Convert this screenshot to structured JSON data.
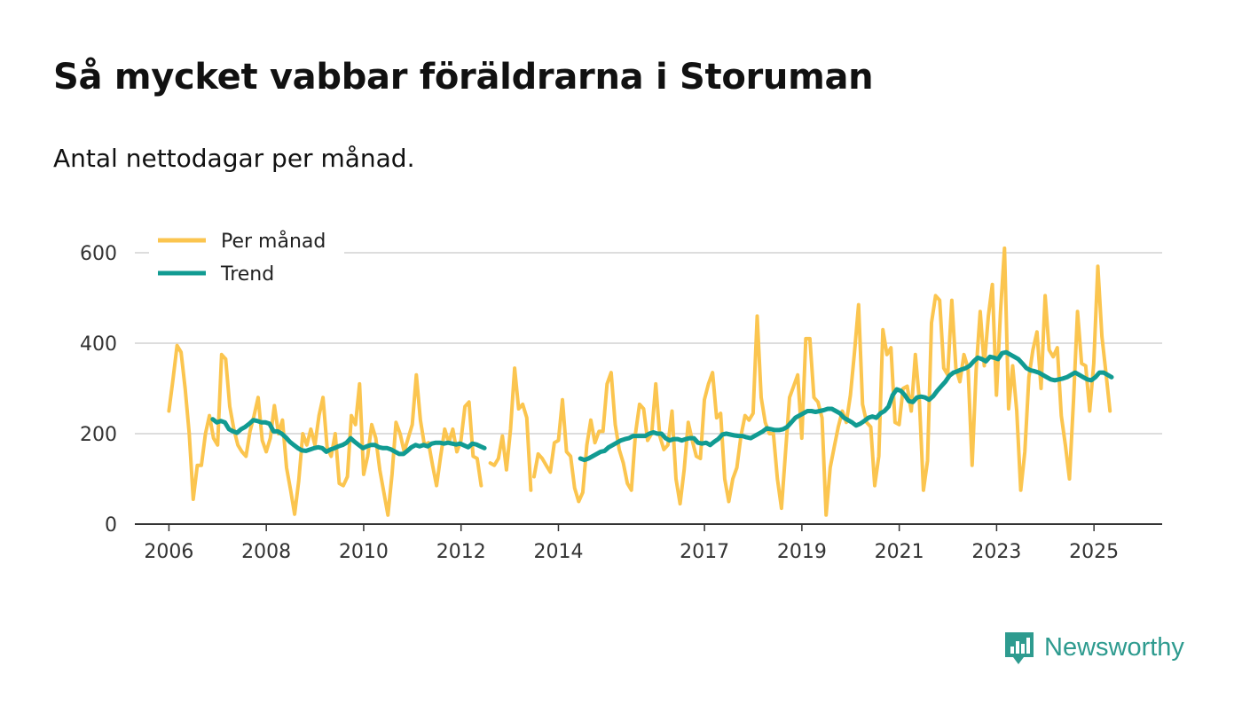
{
  "title": "Så mycket vabbar föräldrarna i Storuman",
  "subtitle": "Antal nettodagar per månad.",
  "brand": {
    "name": "Newsworthy",
    "icon": "newsworthy-logo-icon",
    "color": "#2e9b8f"
  },
  "colors": {
    "monthly": "#fbc54f",
    "trend": "#119b92",
    "grid": "#dddddd",
    "axis": "#333333"
  },
  "chart_data": {
    "type": "line",
    "title": "Så mycket vabbar föräldrarna i Storuman",
    "subtitle": "Antal nettodagar per månad.",
    "xlabel": "",
    "ylabel": "",
    "xlim": [
      2005.3,
      2026.4
    ],
    "ylim": [
      0,
      600
    ],
    "yticks": [
      0,
      200,
      400,
      600
    ],
    "xticks": [
      2006,
      2008,
      2010,
      2012,
      2014,
      2017,
      2019,
      2021,
      2023,
      2025
    ],
    "grid": true,
    "legend_position": "top-left",
    "series": [
      {
        "name": "Per månad",
        "color": "#fbc54f",
        "segments": [
          {
            "start": 2006.0,
            "step": 0.0833,
            "values": [
              250,
              320,
              395,
              380,
              300,
              200,
              55,
              130,
              130,
              200,
              240,
              190,
              175,
              375,
              365,
              260,
              210,
              175,
              160,
              150,
              205,
              240,
              280,
              185,
              160,
              190,
              262,
              200,
              230,
              125,
              75,
              22,
              95,
              200,
              175,
              210,
              175,
              240,
              280,
              170,
              150,
              200,
              90,
              85,
              105,
              240,
              220,
              310,
              110,
              150,
              220,
              190,
              120,
              70,
              20,
              110,
              225,
              200,
              160,
              190,
              220,
              330,
              230,
              175,
              180,
              130,
              85,
              150,
              210,
              180,
              210,
              160,
              185,
              260,
              270,
              150,
              145,
              85
            ]
          },
          {
            "start": 2012.6,
            "step": 0.0833,
            "values": [
              135,
              130,
              145,
              195,
              120,
              210,
              345,
              255,
              265,
              235,
              75
            ]
          },
          {
            "start": 2013.5,
            "step": 0.0833,
            "values": [
              105,
              155,
              145,
              130,
              115,
              180,
              185,
              275,
              160,
              150,
              80,
              50,
              70,
              175,
              230,
              180,
              205,
              205,
              310,
              335,
              220,
              165,
              135,
              90,
              75,
              200,
              265,
              255,
              185,
              200,
              310,
              195,
              165,
              175,
              250,
              100,
              45,
              120,
              225,
              185,
              150,
              145,
              275,
              310,
              335,
              235,
              245,
              100,
              50,
              100,
              125,
              195,
              240,
              230,
              245,
              460,
              280,
              225,
              200,
              200,
              100,
              35,
              160,
              280,
              305,
              330,
              190,
              410,
              410,
              280,
              270,
              235,
              20,
              125,
              170,
              215,
              250,
              225,
              285,
              380,
              485,
              265,
              225,
              215,
              85,
              150,
              430,
              375,
              390,
              225,
              220,
              300,
              305,
              250,
              375,
              275,
              75,
              140,
              445,
              505,
              495,
              345,
              330,
              495,
              345,
              315,
              375,
              345,
              130,
              340,
              470,
              350,
              460,
              530,
              285,
              470,
              610,
              255,
              350,
              250,
              75,
              160,
              325,
              385,
              425,
              300,
              505,
              385,
              370,
              390,
              240,
              175,
              100,
              275,
              470,
              355,
              350,
              250,
              355,
              570,
              415,
              335,
              250
            ]
          }
        ]
      },
      {
        "name": "Trend",
        "color": "#119b92",
        "segments": [
          {
            "start": 2006.9,
            "step": 0.0833,
            "values": [
              232,
              225,
              228,
              225,
              210,
              205,
              202,
              210,
              215,
              222,
              230,
              228,
              225,
              225,
              222,
              205,
              205,
              200,
              192,
              182,
              175,
              168,
              163,
              162,
              165,
              168,
              170,
              168,
              160,
              165,
              168,
              172,
              175,
              180,
              190,
              182,
              175,
              168,
              172,
              175,
              175,
              170,
              168,
              168,
              165,
              160,
              155,
              155,
              162,
              170,
              175,
              172,
              175,
              172,
              178,
              180,
              180,
              178,
              180,
              178,
              176,
              178,
              174,
              170,
              178,
              176,
              172,
              168
            ]
          },
          {
            "start": 2014.45,
            "step": 0.0833,
            "values": [
              145,
              142,
              145,
              150,
              155,
              160,
              162,
              170,
              175,
              180,
              185,
              188,
              190,
              195,
              195,
              195,
              195,
              200,
              203,
              200,
              200,
              190,
              185,
              188,
              188,
              185,
              188,
              190,
              190,
              180,
              178,
              180,
              175,
              182,
              188,
              198,
              200,
              198,
              196,
              195,
              195,
              192,
              190,
              195,
              200,
              205,
              212,
              210,
              208,
              208,
              210,
              215,
              225,
              235,
              240,
              245,
              250,
              250,
              248,
              250,
              252,
              255,
              255,
              250,
              245,
              235,
              230,
              225,
              218,
              222,
              228,
              235,
              238,
              235,
              245,
              250,
              260,
              285,
              298,
              295,
              285,
              272,
              270,
              280,
              282,
              280,
              275,
              283,
              295,
              305,
              315,
              328,
              335,
              338,
              342,
              345,
              350,
              360,
              368,
              365,
              360,
              370,
              368,
              365,
              378,
              380,
              375,
              370,
              365,
              355,
              345,
              340,
              338,
              335,
              330,
              325,
              320,
              318,
              320,
              322,
              325,
              330,
              335,
              330,
              325,
              320,
              318,
              325,
              335,
              335,
              330,
              325
            ]
          }
        ]
      }
    ]
  }
}
